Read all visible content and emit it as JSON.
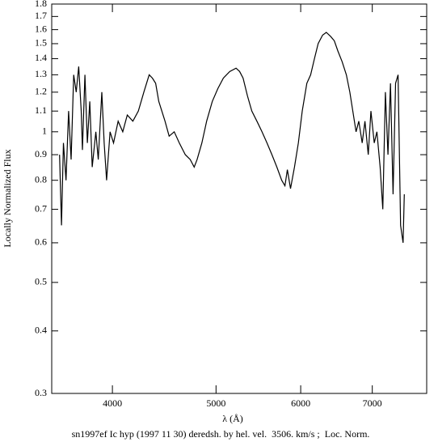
{
  "chart_data": {
    "type": "line",
    "xscale": "log",
    "yscale": "log",
    "xlabel": "λ (Å)",
    "ylabel": "Locally Normalized Flux",
    "caption": "sn1997ef Ic hyp (1997 11 30) deredsh. by hel. vel.  3506. km/s ;  Loc. Norm.",
    "color": "#000000",
    "xlim": [
      3510,
      7870
    ],
    "ylim": [
      0.3,
      1.8
    ],
    "xticks": [
      4000,
      5000,
      6000,
      7000
    ],
    "yticks": [
      0.3,
      0.4,
      0.5,
      0.6,
      0.7,
      0.8,
      0.9,
      1,
      1.1,
      1.2,
      1.3,
      1.4,
      1.5,
      1.6,
      1.7,
      1.8
    ],
    "x": [
      3570,
      3585,
      3600,
      3620,
      3640,
      3660,
      3680,
      3700,
      3720,
      3740,
      3750,
      3770,
      3790,
      3810,
      3830,
      3860,
      3880,
      3910,
      3930,
      3950,
      3980,
      4010,
      4050,
      4090,
      4130,
      4180,
      4230,
      4280,
      4330,
      4360,
      4390,
      4420,
      4480,
      4520,
      4570,
      4620,
      4680,
      4730,
      4770,
      4800,
      4850,
      4900,
      4960,
      5020,
      5080,
      5150,
      5220,
      5260,
      5300,
      5350,
      5400,
      5460,
      5520,
      5580,
      5640,
      5700,
      5760,
      5800,
      5830,
      5870,
      5920,
      5970,
      6020,
      6080,
      6130,
      6180,
      6230,
      6290,
      6340,
      6400,
      6450,
      6500,
      6560,
      6620,
      6670,
      6760,
      6800,
      6850,
      6890,
      6940,
      6980,
      7030,
      7070,
      7120,
      7160,
      7200,
      7240,
      7280,
      7320,
      7360,
      7400,
      7440,
      7480,
      7500
    ],
    "values": [
      0.9,
      0.65,
      0.95,
      0.8,
      1.1,
      0.88,
      1.3,
      1.2,
      1.35,
      1.1,
      0.92,
      1.3,
      0.95,
      1.15,
      0.85,
      1.0,
      0.88,
      1.2,
      0.95,
      0.8,
      1.0,
      0.95,
      1.05,
      1.0,
      1.08,
      1.05,
      1.1,
      1.2,
      1.3,
      1.28,
      1.25,
      1.15,
      1.05,
      0.98,
      1.0,
      0.95,
      0.9,
      0.88,
      0.85,
      0.88,
      0.95,
      1.05,
      1.15,
      1.22,
      1.28,
      1.32,
      1.34,
      1.32,
      1.28,
      1.18,
      1.1,
      1.05,
      1.0,
      0.95,
      0.9,
      0.85,
      0.8,
      0.78,
      0.84,
      0.77,
      0.85,
      0.95,
      1.1,
      1.25,
      1.3,
      1.4,
      1.5,
      1.56,
      1.58,
      1.55,
      1.52,
      1.45,
      1.38,
      1.3,
      1.2,
      1.0,
      1.05,
      0.95,
      1.05,
      0.9,
      1.1,
      0.95,
      1.0,
      0.85,
      0.7,
      1.2,
      0.9,
      1.25,
      0.75,
      1.25,
      1.3,
      0.65,
      0.6,
      0.75
    ]
  }
}
